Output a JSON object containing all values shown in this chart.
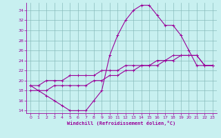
{
  "xlabel": "Windchill (Refroidissement éolien,°C)",
  "background_color": "#c8f0f0",
  "line_color": "#990099",
  "grid_color": "#88bbbb",
  "hours": [
    0,
    1,
    2,
    3,
    4,
    5,
    6,
    7,
    8,
    9,
    10,
    11,
    12,
    13,
    14,
    15,
    16,
    17,
    18,
    19,
    20,
    21,
    22,
    23
  ],
  "line1": [
    19,
    18,
    17,
    16,
    15,
    14,
    14,
    14,
    16,
    18,
    25,
    29,
    32,
    34,
    35,
    35,
    33,
    31,
    31,
    29,
    26,
    23,
    23,
    23
  ],
  "line2": [
    18,
    18,
    18,
    19,
    19,
    19,
    19,
    19,
    20,
    20,
    21,
    21,
    22,
    22,
    23,
    23,
    23,
    24,
    24,
    25,
    25,
    25,
    23,
    23
  ],
  "line3": [
    19,
    19,
    20,
    20,
    20,
    21,
    21,
    21,
    21,
    22,
    22,
    22,
    23,
    23,
    23,
    23,
    24,
    24,
    25,
    25,
    25,
    25,
    23,
    23
  ],
  "xlim": [
    -0.5,
    23.5
  ],
  "ylim": [
    13.5,
    35.5
  ],
  "yticks": [
    14,
    16,
    18,
    20,
    22,
    24,
    26,
    28,
    30,
    32,
    34
  ],
  "xticks": [
    0,
    1,
    2,
    3,
    4,
    5,
    6,
    7,
    8,
    9,
    10,
    11,
    12,
    13,
    14,
    15,
    16,
    17,
    18,
    19,
    20,
    21,
    22,
    23
  ]
}
